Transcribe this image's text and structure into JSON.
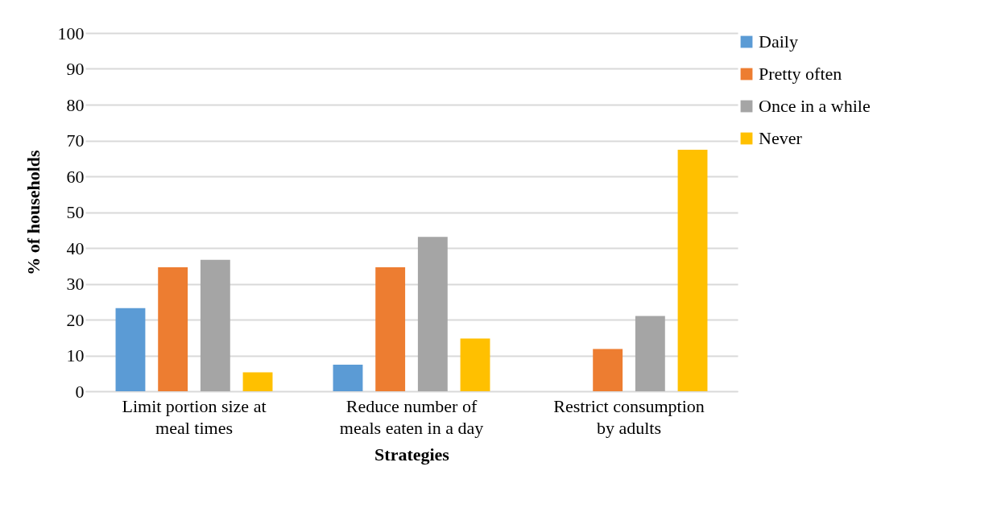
{
  "chart_data": {
    "type": "bar",
    "xlabel": "Strategies",
    "ylabel": "% of households",
    "categories": [
      "Limit portion size at meal times",
      "Reduce number of meals eaten in a day",
      "Restrict consumption by adults"
    ],
    "series": [
      {
        "name": "Daily",
        "color": "#5b9bd5",
        "values": [
          23.2,
          7.4,
          0
        ]
      },
      {
        "name": "Pretty often",
        "color": "#ed7d31",
        "values": [
          34.6,
          34.6,
          11.8
        ]
      },
      {
        "name": "Once in a while",
        "color": "#a5a5a5",
        "values": [
          36.7,
          43.1,
          21.0
        ]
      },
      {
        "name": "Never",
        "color": "#ffc000",
        "values": [
          5.3,
          14.7,
          67.4
        ]
      }
    ],
    "ylim": [
      0,
      100
    ],
    "yticks": [
      0,
      10,
      20,
      30,
      40,
      50,
      60,
      70,
      80,
      90,
      100
    ],
    "grid": "y",
    "legend": "right"
  }
}
